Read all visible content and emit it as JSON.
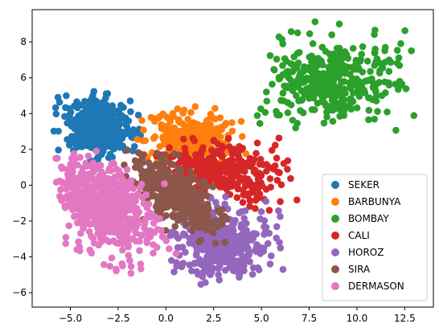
{
  "chart_data": {
    "type": "scatter",
    "title": "",
    "xlabel": "",
    "ylabel": "",
    "xlim": [
      -7.0,
      14.0
    ],
    "ylim": [
      -6.8,
      9.8
    ],
    "xticks": [
      -5.0,
      -2.5,
      0.0,
      2.5,
      5.0,
      7.5,
      10.0,
      12.5
    ],
    "xtick_labels": [
      "−5.0",
      "−2.5",
      "0.0",
      "2.5",
      "5.0",
      "7.5",
      "10.0",
      "12.5"
    ],
    "yticks": [
      -6,
      -4,
      -2,
      0,
      2,
      4,
      6,
      8
    ],
    "ytick_labels": [
      "−6",
      "−4",
      "−2",
      "0",
      "2",
      "4",
      "6",
      "8"
    ],
    "grid": false,
    "legend_position": "lower right",
    "series": [
      {
        "name": "SEKER",
        "color": "#1f77b4",
        "center": [
          -3.6,
          3.2
        ],
        "spread": [
          0.9,
          0.75
        ],
        "angle": -0.2,
        "count": 400,
        "bounds": [
          -6.3,
          1.3,
          -1.0,
          5.4
        ]
      },
      {
        "name": "BARBUNYA",
        "color": "#ff7f0e",
        "center": [
          1.2,
          2.6
        ],
        "spread": [
          1.2,
          0.75
        ],
        "angle": 0.0,
        "count": 260,
        "bounds": [
          -2.5,
          1.0,
          4.8,
          4.8
        ]
      },
      {
        "name": "BOMBAY",
        "color": "#2ca02c",
        "center": [
          8.7,
          5.8
        ],
        "spread": [
          1.7,
          1.1
        ],
        "angle": 0.15,
        "count": 380,
        "bounds": [
          2.4,
          2.8,
          13.3,
          9.3
        ]
      },
      {
        "name": "CALI",
        "color": "#d62728",
        "center": [
          3.1,
          0.8
        ],
        "spread": [
          1.5,
          0.85
        ],
        "angle": -0.15,
        "count": 320,
        "bounds": [
          -0.5,
          -2.2,
          7.3,
          2.7
        ]
      },
      {
        "name": "HOROZ",
        "color": "#9467bd",
        "center": [
          2.9,
          -3.3
        ],
        "spread": [
          1.3,
          0.95
        ],
        "angle": 0.1,
        "count": 380,
        "bounds": [
          -0.5,
          -5.9,
          6.5,
          0.6
        ]
      },
      {
        "name": "SIRA",
        "color": "#8c564b",
        "center": [
          0.6,
          -0.6
        ],
        "spread": [
          1.6,
          0.7
        ],
        "angle": -0.72,
        "count": 360,
        "bounds": [
          -3.0,
          -3.3,
          3.6,
          2.3
        ]
      },
      {
        "name": "DERMASON",
        "color": "#e377c2",
        "center": [
          -3.2,
          -1.2
        ],
        "spread": [
          1.6,
          0.95
        ],
        "angle": -0.85,
        "count": 520,
        "bounds": [
          -6.0,
          -5.5,
          0.9,
          2.0
        ]
      }
    ]
  }
}
